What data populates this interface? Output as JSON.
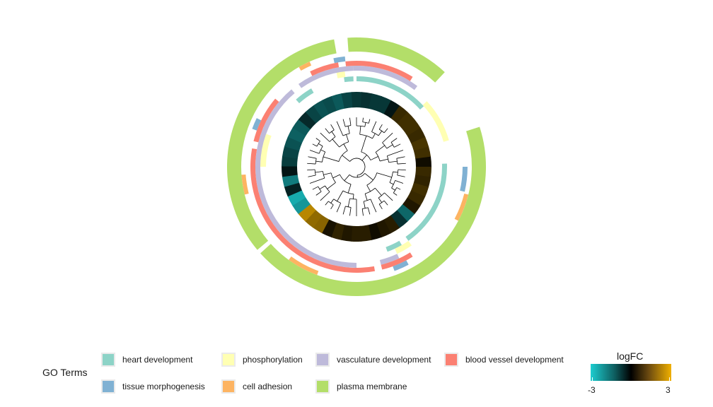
{
  "legend": {
    "title": "GO Terms",
    "items": [
      {
        "label": "heart development",
        "color": "#8dd3c7"
      },
      {
        "label": "phosphorylation",
        "color": "#ffffb3"
      },
      {
        "label": "vasculature development",
        "color": "#bebada"
      },
      {
        "label": "blood vessel development",
        "color": "#fb8072"
      },
      {
        "label": "tissue morphogenesis",
        "color": "#80b1d3"
      },
      {
        "label": "cell adhesion",
        "color": "#fdb462"
      },
      {
        "label": "plasma membrane",
        "color": "#b3de69"
      }
    ]
  },
  "colorbar": {
    "title": "logFC",
    "min_label": "-3",
    "max_label": "3",
    "colors": [
      "#1ccdd0",
      "#000000",
      "#f0b000"
    ]
  },
  "chart_data": {
    "type": "circular-dendrogram-heatmap",
    "logFC": [
      -0.9,
      -1.0,
      -1.2,
      -1.4,
      -1.3,
      -0.6,
      -1.0,
      -1.2,
      -1.1,
      -1.3,
      -1.0,
      -0.8,
      -0.7,
      -0.8,
      -0.8,
      -0.3,
      0.7,
      0.8,
      0.8,
      0.7,
      0.9,
      0.8,
      0.2,
      0.7,
      0.6,
      0.8,
      0.7,
      0.4,
      -1.5,
      -0.7,
      0.5,
      0.4,
      0.2,
      0.5,
      0.5,
      0.4,
      0.6,
      0.3,
      1.7,
      1.8,
      2.3,
      -2.2,
      -2.5,
      -0.5,
      -1.8,
      -0.3
    ],
    "rings": [
      {
        "name": "heart development",
        "color": "#8dd3c7",
        "intervals": [
          [
            0,
            48
          ],
          [
            88,
            145
          ],
          [
            150,
            160
          ],
          [
            318,
            330
          ],
          [
            352,
            358
          ]
        ]
      },
      {
        "name": "phosphorylation",
        "color": "#ffffb3",
        "intervals": [
          [
            47,
            74
          ],
          [
            145,
            155
          ],
          [
            270,
            290
          ],
          [
            348,
            353
          ]
        ]
      },
      {
        "name": "vasculature development",
        "color": "#bebada",
        "intervals": [
          [
            -2,
            37
          ],
          [
            155,
            166
          ],
          [
            180,
            320
          ],
          [
            325,
            358
          ]
        ]
      },
      {
        "name": "blood vessel development",
        "color": "#fb8072",
        "intervals": [
          [
            -6,
            32
          ],
          [
            148,
            166
          ],
          [
            170,
            280
          ],
          [
            284,
            310
          ],
          [
            334,
            350
          ]
        ]
      },
      {
        "name": "tissue morphogenesis",
        "color": "#80b1d3",
        "intervals": [
          [
            348,
            354
          ],
          [
            90,
            103
          ],
          [
            152,
            160
          ],
          [
            290,
            296
          ]
        ]
      },
      {
        "name": "cell adhesion",
        "color": "#fdb462",
        "intervals": [
          [
            104,
            118
          ],
          [
            200,
            216
          ],
          [
            256,
            266
          ],
          [
            330,
            336
          ]
        ]
      },
      {
        "name": "plasma membrane",
        "color": "#b3de69",
        "intervals": [
          [
            -4,
            43
          ],
          [
            72,
            228
          ],
          [
            230,
            350
          ]
        ]
      }
    ]
  }
}
